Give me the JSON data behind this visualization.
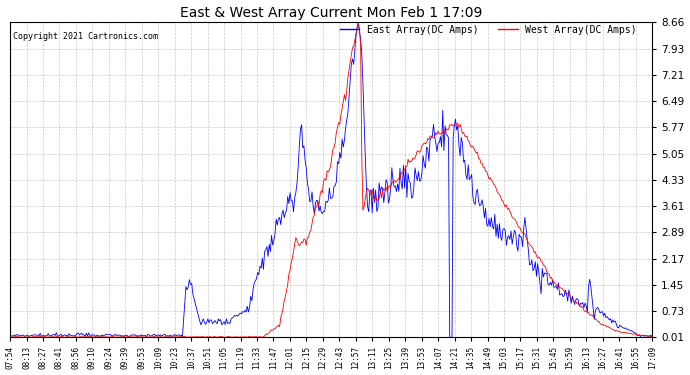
{
  "title": "East & West Array Current Mon Feb 1 17:09",
  "copyright": "Copyright 2021 Cartronics.com",
  "legend_east": "East Array(DC Amps)",
  "legend_west": "West Array(DC Amps)",
  "east_color": "blue",
  "west_color": "red",
  "bg_color": "#ffffff",
  "grid_color": "#bbbbbb",
  "ylim": [
    0.01,
    8.66
  ],
  "yticks": [
    0.01,
    0.73,
    1.45,
    2.17,
    2.89,
    3.61,
    4.33,
    5.05,
    5.77,
    6.49,
    7.21,
    7.93,
    8.66
  ],
  "xtick_labels": [
    "07:54",
    "08:13",
    "08:27",
    "08:41",
    "08:56",
    "09:10",
    "09:24",
    "09:39",
    "09:53",
    "10:09",
    "10:23",
    "10:37",
    "10:51",
    "11:05",
    "11:19",
    "11:33",
    "11:47",
    "12:01",
    "12:15",
    "12:29",
    "12:43",
    "12:57",
    "13:11",
    "13:25",
    "13:39",
    "13:53",
    "14:07",
    "14:21",
    "14:35",
    "14:49",
    "15:03",
    "15:17",
    "15:31",
    "15:45",
    "15:59",
    "16:13",
    "16:27",
    "16:41",
    "16:55",
    "17:09"
  ]
}
